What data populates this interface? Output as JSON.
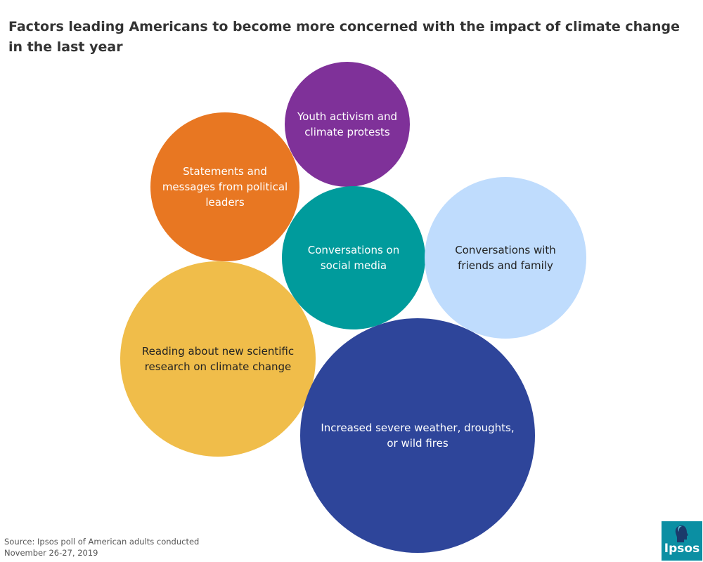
{
  "chart_data": {
    "type": "bubble",
    "title": "Factors leading Americans to become more concerned with the impact of climate change in the last year",
    "bubbles": [
      {
        "label": "Youth activism and climate protests",
        "color": "#7f3199",
        "text_color": "#ffffff"
      },
      {
        "label": "Statements and messages from political leaders",
        "color": "#e87722",
        "text_color": "#ffffff"
      },
      {
        "label": "Conversations on social media",
        "color": "#009b9c",
        "text_color": "#ffffff"
      },
      {
        "label": "Conversations with friends and family",
        "color": "#bfdcfd",
        "text_color": "#222222"
      },
      {
        "label": "Reading about new scientific research on climate change",
        "color": "#f0bd4a",
        "text_color": "#222222"
      },
      {
        "label": "Increased severe weather, droughts, or wild fires",
        "color": "#2e459a",
        "text_color": "#ffffff"
      }
    ]
  },
  "source": {
    "line1": "Source: Ipsos poll of American adults conducted",
    "line2": "November 26-27, 2019"
  },
  "logo": {
    "text": "Ipsos",
    "color": "#0b8fa3"
  }
}
